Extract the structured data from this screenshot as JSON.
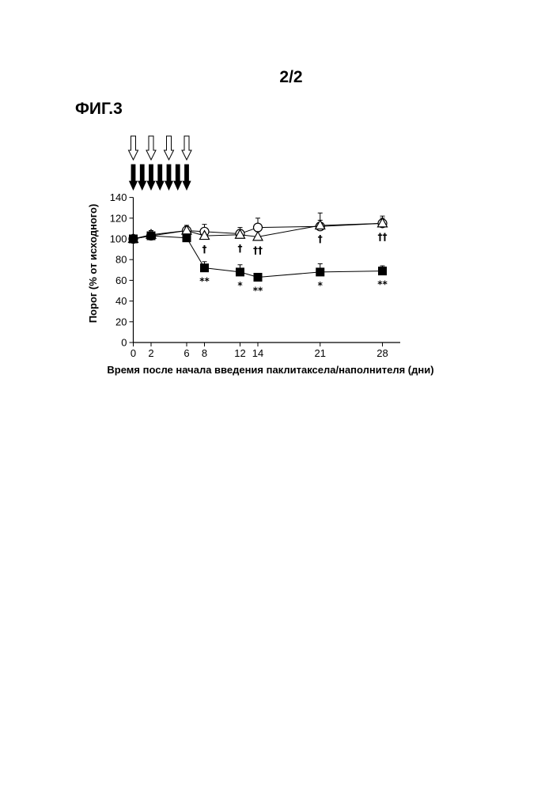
{
  "page_number": "2/2",
  "figure_label": "ФИГ.3",
  "chart_data": {
    "type": "line",
    "xlabel": "Время после начала введения паклитаксела/наполнителя (дни)",
    "ylabel": "Порог (% от исходного)",
    "xlim": [
      0,
      30
    ],
    "ylim": [
      0,
      140
    ],
    "x_ticks": [
      0,
      2,
      6,
      8,
      12,
      14,
      21,
      28
    ],
    "y_ticks": [
      0,
      20,
      40,
      60,
      80,
      100,
      120,
      140
    ],
    "grid": false,
    "legend": "none",
    "open_arrow_days": [
      0,
      2,
      4,
      6
    ],
    "filled_arrow_days": [
      0,
      1,
      2,
      3,
      4,
      5,
      6
    ],
    "series": [
      {
        "marker": "open-circle",
        "x": [
          0,
          2,
          6,
          8,
          12,
          14,
          21,
          28
        ],
        "y": [
          100,
          103,
          108,
          107,
          105,
          111,
          112,
          115
        ],
        "err": [
          3,
          5,
          5,
          7,
          6,
          9,
          13,
          7
        ]
      },
      {
        "marker": "open-triangle",
        "x": [
          0,
          2,
          6,
          8,
          12,
          14,
          21,
          28
        ],
        "y": [
          100,
          104,
          108,
          103,
          104,
          102,
          113,
          115
        ],
        "err": [
          3,
          4,
          5,
          5,
          5,
          5,
          5,
          5
        ]
      },
      {
        "marker": "filled-square",
        "x": [
          0,
          2,
          6,
          8,
          12,
          14,
          21,
          28
        ],
        "y": [
          100,
          103,
          101,
          72,
          68,
          63,
          68,
          69
        ],
        "err": [
          2,
          3,
          4,
          6,
          7,
          3,
          8,
          5
        ]
      }
    ],
    "annotations": [
      {
        "x": 8,
        "text": "†",
        "series_ref": 1
      },
      {
        "x": 12,
        "text": "†",
        "series_ref": 1
      },
      {
        "x": 14,
        "text": "††",
        "series_ref": 1
      },
      {
        "x": 21,
        "text": "†",
        "series_ref": 1
      },
      {
        "x": 28,
        "text": "††",
        "series_ref": 1
      },
      {
        "x": 8,
        "text": "**",
        "series_ref": 2
      },
      {
        "x": 12,
        "text": "*",
        "series_ref": 2
      },
      {
        "x": 14,
        "text": "**",
        "series_ref": 2
      },
      {
        "x": 21,
        "text": "*",
        "series_ref": 2
      },
      {
        "x": 28,
        "text": "**",
        "series_ref": 2
      }
    ]
  }
}
